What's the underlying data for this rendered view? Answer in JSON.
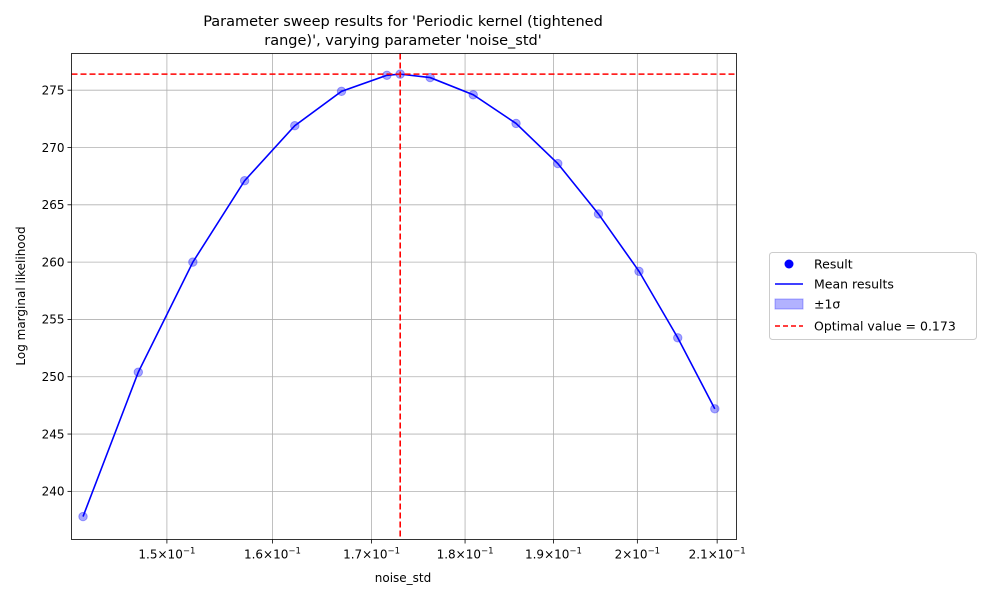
{
  "chart_data": {
    "type": "line",
    "title_lines": [
      "Parameter sweep results for 'Periodic kernel (tightened",
      "range)', varying parameter 'noise_std'"
    ],
    "xlabel": "noise_std",
    "ylabel": "Log marginal likelihood",
    "x_scale": "log",
    "xlim": [
      0.1415,
      0.2125
    ],
    "ylim": [
      235.8,
      278.2
    ],
    "x_ticks": [
      {
        "value": 0.15,
        "mantissa": "1.5"
      },
      {
        "value": 0.16,
        "mantissa": "1.6"
      },
      {
        "value": 0.17,
        "mantissa": "1.7"
      },
      {
        "value": 0.18,
        "mantissa": "1.8"
      },
      {
        "value": 0.19,
        "mantissa": "1.9"
      },
      {
        "value": 0.2,
        "mantissa": "2"
      },
      {
        "value": 0.21,
        "mantissa": "2.1"
      }
    ],
    "x_tick_base": "10",
    "x_tick_exponent": "−1",
    "y_ticks": [
      240,
      245,
      250,
      255,
      260,
      265,
      270,
      275
    ],
    "grid": true,
    "x": [
      0.1425,
      0.1474,
      0.1524,
      0.1573,
      0.1622,
      0.1669,
      0.1716,
      0.173,
      0.1762,
      0.1809,
      0.1857,
      0.1905,
      0.1953,
      0.2002,
      0.205,
      0.2097
    ],
    "series": [
      {
        "name": "Result",
        "kind": "scatter",
        "color": "#0000ff",
        "values": [
          237.8,
          250.4,
          260.0,
          267.1,
          271.9,
          274.9,
          276.3,
          276.4,
          276.1,
          274.6,
          272.1,
          268.6,
          264.2,
          259.2,
          253.4,
          247.2
        ]
      },
      {
        "name": "Mean results",
        "kind": "line",
        "color": "#0000ff",
        "values": [
          237.8,
          250.4,
          260.0,
          267.1,
          271.9,
          274.9,
          276.3,
          276.4,
          276.1,
          274.6,
          272.1,
          268.6,
          264.2,
          259.2,
          253.4,
          247.2
        ]
      }
    ],
    "band": {
      "name": "±1σ",
      "color": "#0000ff",
      "opacity": 0.3
    },
    "optimal": {
      "name": "Optimal value = 0.173",
      "x": 0.173,
      "y": 276.4,
      "color": "#ff0000"
    },
    "legend_placement": "right"
  }
}
